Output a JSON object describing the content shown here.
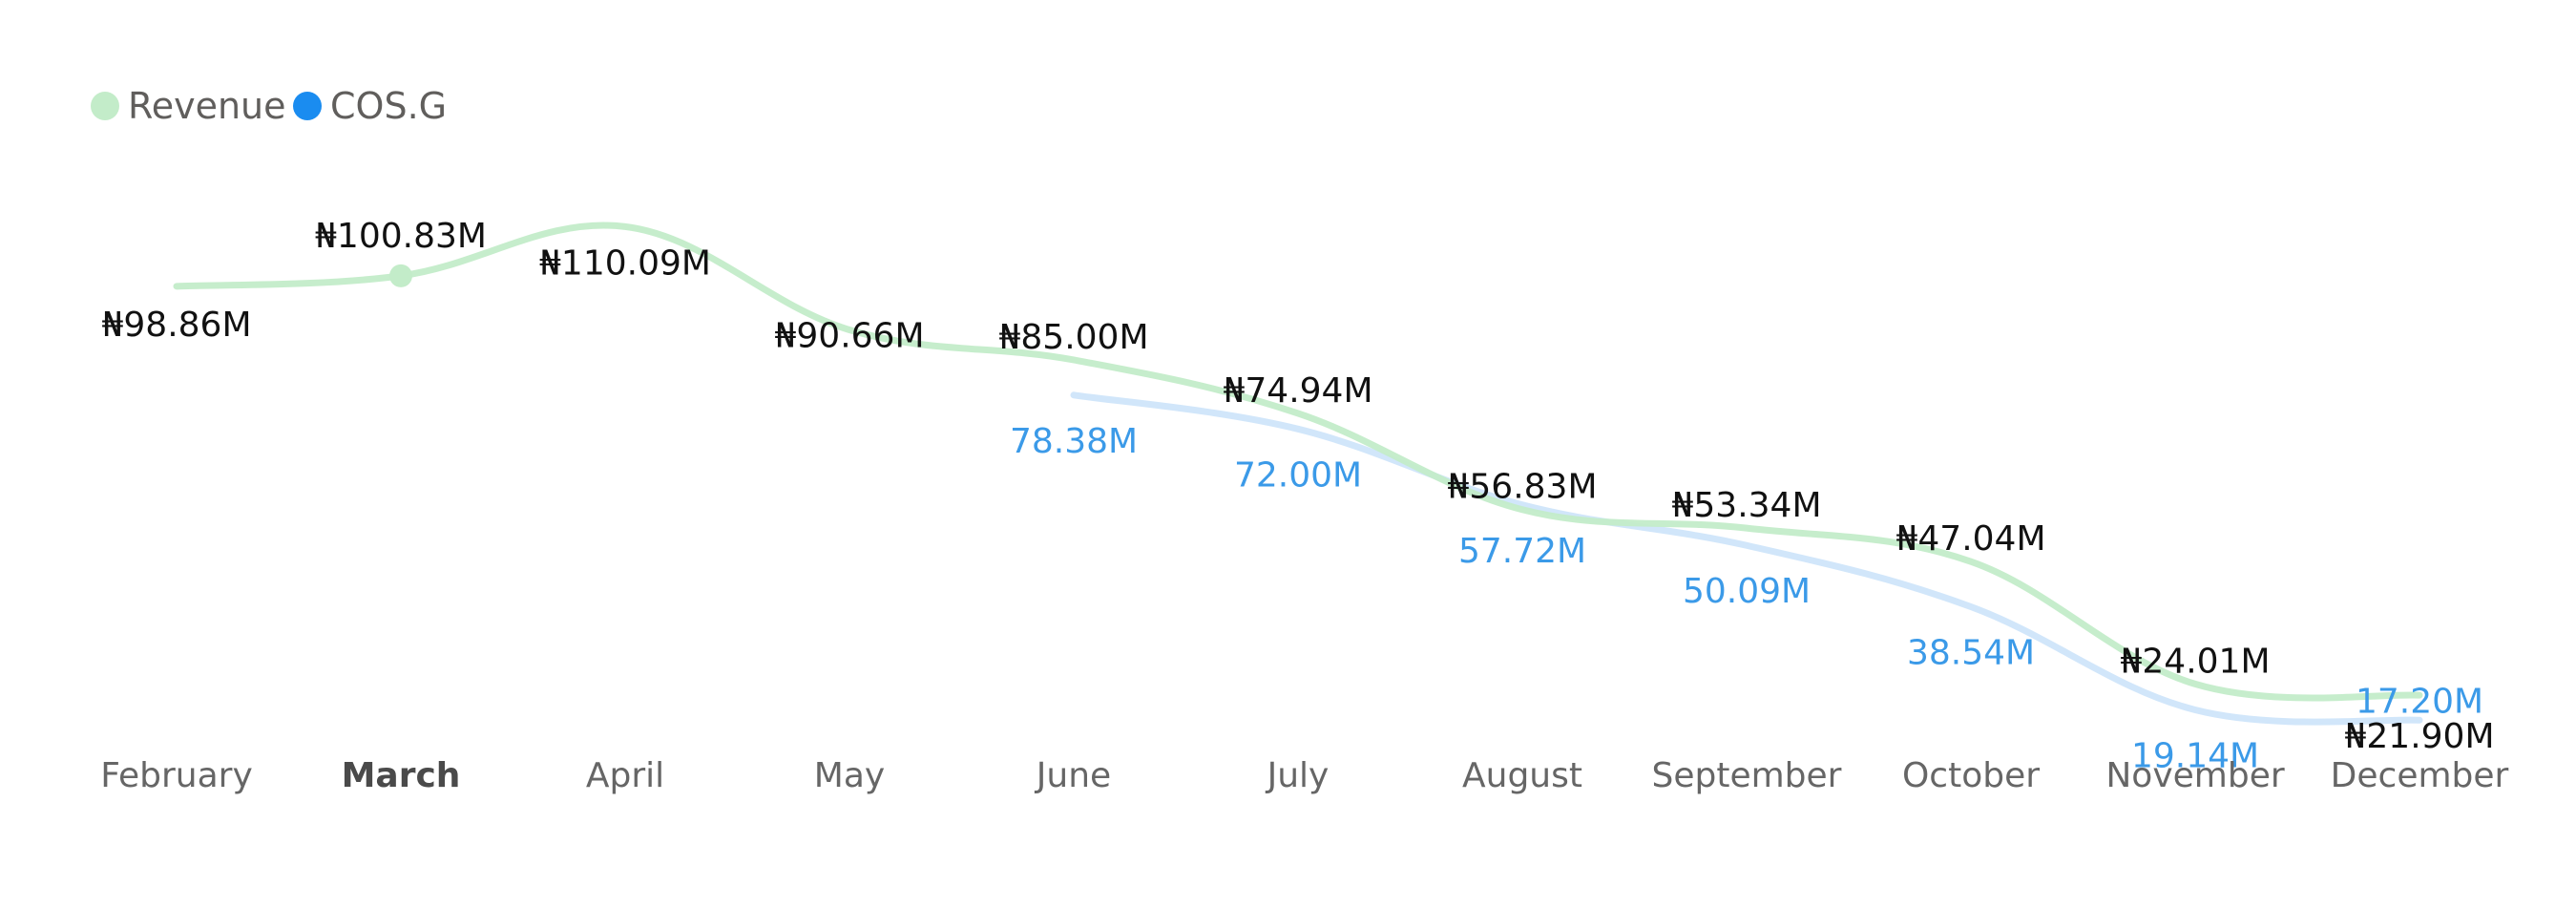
{
  "chart_data": {
    "type": "line",
    "categories": [
      "February",
      "March",
      "April",
      "May",
      "June",
      "July",
      "August",
      "September",
      "October",
      "November",
      "December"
    ],
    "highlighted_category": "March",
    "legend": {
      "placement": "top-left"
    },
    "grid": false,
    "ylim": [
      0,
      120
    ],
    "series": [
      {
        "name": "Revenue",
        "color": "#c3ecc9",
        "values": [
          98.86,
          100.83,
          110.09,
          90.66,
          85.0,
          74.94,
          56.83,
          53.34,
          47.04,
          24.01,
          21.9
        ],
        "labels": [
          "₦98.86M",
          "₦100.83M",
          "₦110.09M",
          "₦90.66M",
          "₦85.00M",
          "₦74.94M",
          "₦56.83M",
          "₦53.34M",
          "₦47.04M",
          "₦24.01M",
          "₦21.90M"
        ],
        "label_color": "#111111"
      },
      {
        "name": "COS.G",
        "color": "#cfe5fa",
        "legend_color": "#1a8cf0",
        "values": [
          null,
          null,
          null,
          null,
          78.38,
          72.0,
          57.72,
          50.09,
          38.54,
          19.14,
          17.2
        ],
        "labels": [
          null,
          null,
          null,
          null,
          "78.38M",
          "72.00M",
          "57.72M",
          "50.09M",
          "38.54M",
          "19.14M",
          "17.20M"
        ],
        "label_color": "#3b9ae8"
      }
    ]
  }
}
